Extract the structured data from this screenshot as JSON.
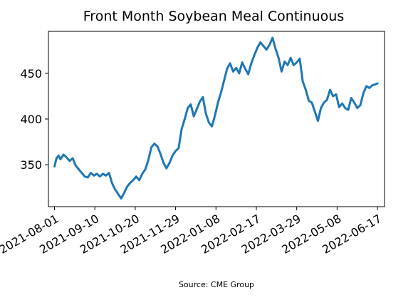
{
  "chart_data": {
    "type": "line",
    "title": "Front Month Soybean Meal Continuous",
    "source": "Source: CME Group",
    "xlabel": "",
    "ylabel": "",
    "x_ticks": [
      "2021-08-01",
      "2021-09-10",
      "2021-10-20",
      "2021-11-29",
      "2022-01-08",
      "2022-02-17",
      "2022-03-29",
      "2022-05-08",
      "2022-06-17"
    ],
    "y_ticks": [
      350,
      400,
      450
    ],
    "xlim": [
      "2021-07-26",
      "2022-06-24"
    ],
    "ylim": [
      304,
      496
    ],
    "grid": false,
    "color": "#1f77b4",
    "series": [
      {
        "x": [
          "2021-08-01",
          "2021-08-03",
          "2021-08-05",
          "2021-08-07",
          "2021-08-10",
          "2021-08-13",
          "2021-08-16",
          "2021-08-19",
          "2021-08-22",
          "2021-08-25",
          "2021-08-28",
          "2021-08-31",
          "2021-09-03",
          "2021-09-06",
          "2021-09-09",
          "2021-09-12",
          "2021-09-15",
          "2021-09-18",
          "2021-09-21",
          "2021-09-24",
          "2021-09-27",
          "2021-09-30",
          "2021-10-03",
          "2021-10-06",
          "2021-10-09",
          "2021-10-12",
          "2021-10-15",
          "2021-10-18",
          "2021-10-21",
          "2021-10-24",
          "2021-10-27",
          "2021-10-30",
          "2021-11-02",
          "2021-11-05",
          "2021-11-08",
          "2021-11-11",
          "2021-11-14",
          "2021-11-17",
          "2021-11-20",
          "2021-11-23",
          "2021-11-26",
          "2021-11-29",
          "2021-12-02",
          "2021-12-05",
          "2021-12-08",
          "2021-12-11",
          "2021-12-14",
          "2021-12-17",
          "2021-12-20",
          "2021-12-23",
          "2021-12-26",
          "2021-12-29",
          "2022-01-01",
          "2022-01-04",
          "2022-01-07",
          "2022-01-10",
          "2022-01-13",
          "2022-01-16",
          "2022-01-19",
          "2022-01-22",
          "2022-01-25",
          "2022-01-28",
          "2022-01-31",
          "2022-02-03",
          "2022-02-06",
          "2022-02-09",
          "2022-02-12",
          "2022-02-15",
          "2022-02-18",
          "2022-02-21",
          "2022-02-24",
          "2022-02-27",
          "2022-03-02",
          "2022-03-05",
          "2022-03-08",
          "2022-03-11",
          "2022-03-14",
          "2022-03-17",
          "2022-03-20",
          "2022-03-23",
          "2022-03-26",
          "2022-03-29",
          "2022-04-01",
          "2022-04-04",
          "2022-04-07",
          "2022-04-10",
          "2022-04-13",
          "2022-04-16",
          "2022-04-19",
          "2022-04-22",
          "2022-04-25",
          "2022-04-28",
          "2022-05-01",
          "2022-05-04",
          "2022-05-07",
          "2022-05-10",
          "2022-05-13",
          "2022-05-16",
          "2022-05-19",
          "2022-05-22",
          "2022-05-25",
          "2022-05-28",
          "2022-05-31",
          "2022-06-03",
          "2022-06-06",
          "2022-06-09",
          "2022-06-12",
          "2022-06-15",
          "2022-06-17"
        ],
        "values": [
          348,
          357,
          360,
          356,
          361,
          358,
          354,
          357,
          349,
          345,
          341,
          337,
          336,
          341,
          338,
          340,
          337,
          340,
          338,
          341,
          330,
          323,
          318,
          313,
          319,
          326,
          330,
          333,
          337,
          333,
          340,
          345,
          355,
          369,
          373,
          370,
          362,
          352,
          346,
          352,
          360,
          365,
          368,
          389,
          400,
          412,
          416,
          403,
          411,
          419,
          424,
          406,
          396,
          392,
          404,
          418,
          429,
          442,
          455,
          461,
          452,
          456,
          450,
          462,
          455,
          449,
          461,
          470,
          478,
          484,
          480,
          476,
          481,
          489,
          477,
          467,
          452,
          463,
          459,
          467,
          459,
          462,
          466,
          441,
          432,
          420,
          418,
          408,
          398,
          412,
          418,
          421,
          432,
          425,
          427,
          413,
          417,
          412,
          410,
          423,
          418,
          412,
          415,
          428,
          436,
          434,
          437,
          438,
          439
        ]
      }
    ]
  }
}
